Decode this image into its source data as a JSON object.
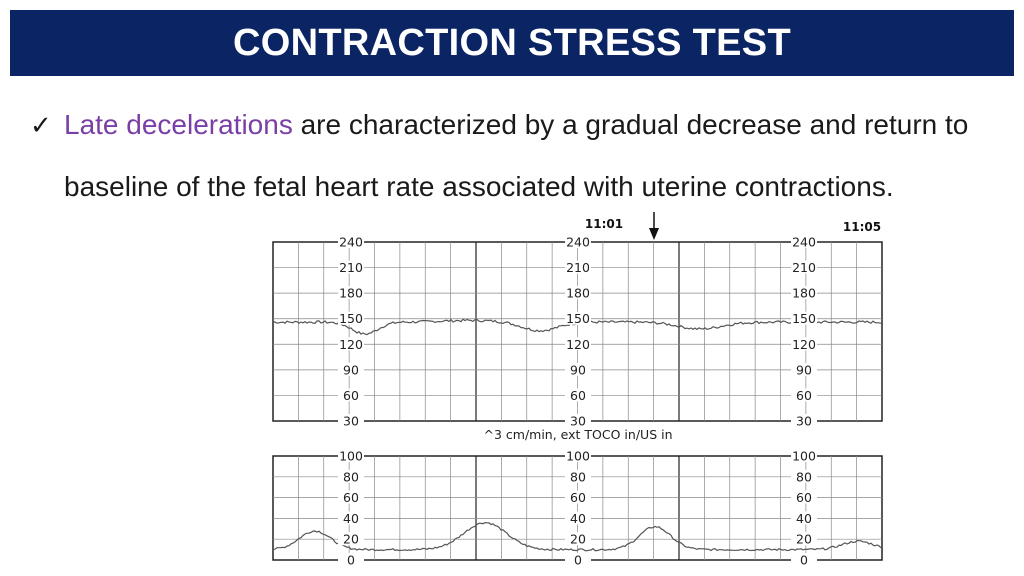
{
  "slide": {
    "title": "CONTRACTION STRESS TEST",
    "bullet_icon": "checkmark-icon",
    "bullet": {
      "highlight": "Late decelerations",
      "rest": " are characterized by a gradual decrease and return to baseline of the fetal heart rate associated with uterine contractions."
    },
    "colors": {
      "title_bg": "#0b2463",
      "highlight": "#7a3fa6"
    }
  },
  "strip": {
    "time_labels": [
      "11:01",
      "11:05"
    ],
    "fhr_scale": [
      "240",
      "210",
      "180",
      "150",
      "120",
      "90",
      "60",
      "30"
    ],
    "toco_scale": [
      "100",
      "80",
      "60",
      "40",
      "20",
      "0"
    ],
    "mid_caption": "^3 cm/min, ext TOCO in/US in",
    "arrow_icon": "down-arrow-icon"
  }
}
